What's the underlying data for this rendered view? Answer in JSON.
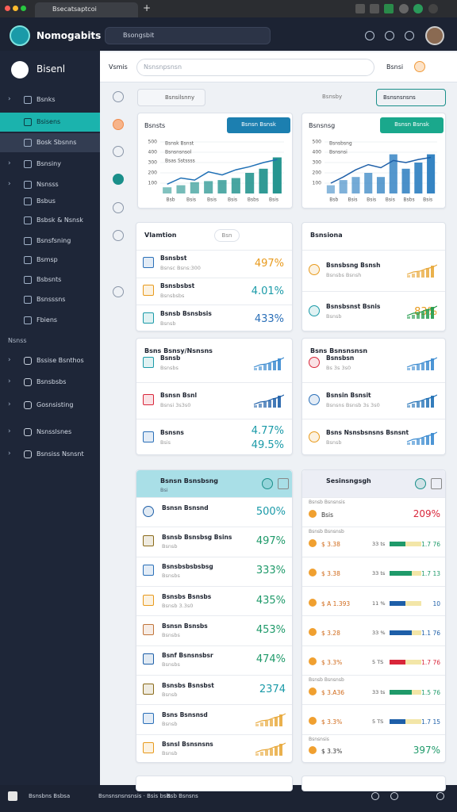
{
  "browser": {
    "tab": "Bsecatsaptcoi"
  },
  "header": {
    "logo": "Nomogabits",
    "search": "Bsongsbit"
  },
  "sidebar": {
    "user": "Bisenl",
    "active": 1,
    "items": [
      "Bsnks",
      "Bsisens",
      "Bosk Sbsnns",
      "Bsnsiny",
      "Nsnsss",
      "Bsbus",
      "Bsbsk & Nsnsk",
      "Bsnsfsning",
      "Bsmsp",
      "Bsbsnts",
      "Bsnsssns",
      "Fbiens"
    ],
    "section": "Nsnss",
    "items2": [
      "Bssise Bsnthos",
      "Bsnsbsbs",
      "Gosnsisting",
      "Nsnsslsnes",
      "Bsnsiss Nsnsnt"
    ]
  },
  "toolbar": {
    "label": "Vsmis",
    "search": "Nsnsnpsnsn",
    "action": "Bsnsi"
  },
  "filter": {
    "chip": "Bsnsilsnny",
    "label": "Bsnsby",
    "button": "Bsnsnsnsns"
  },
  "charts": [
    {
      "title": "Bsnsts",
      "button": "Bsnsn Bsnsk",
      "legend": [
        "Bsnsk Bsnst",
        "Bsnsnsnsol",
        "Bsas Sstssss"
      ],
      "ylim": [
        0,
        500
      ],
      "yticks": [
        100,
        200,
        300,
        400,
        500
      ],
      "xlabels": [
        "Bsb",
        "Bsis",
        "Bsis",
        "Bsis",
        "Bsbs",
        "Bsis"
      ],
      "bars": [
        60,
        80,
        110,
        120,
        130,
        150,
        200,
        240,
        350
      ],
      "line": [
        90,
        150,
        130,
        210,
        180,
        230,
        260,
        300,
        330
      ],
      "color": "#1a8f8a",
      "line_color": "#1e6fb5",
      "button_color": "#1c7fb0"
    },
    {
      "title": "Bsnsnsg",
      "button": "Bsnsn Bsnsk",
      "legend": [
        "Bsnsbsng",
        "Bsnsnsi"
      ],
      "ylim": [
        0,
        500
      ],
      "yticks": [
        100,
        200,
        300,
        400,
        500
      ],
      "xlabels": [
        "Bsb",
        "Bsis",
        "Bsis",
        "Bsis",
        "Bsbs",
        "Bsis"
      ],
      "bars": [
        80,
        130,
        160,
        200,
        160,
        380,
        240,
        300,
        380
      ],
      "line": [
        100,
        160,
        230,
        280,
        250,
        320,
        300,
        330,
        350
      ],
      "color": "#2a7dc0",
      "line_color": "#1e5fa8",
      "button_color": "#1aa88c"
    }
  ],
  "cards": [
    {
      "title": "Vlamtion",
      "chip": "Bsn",
      "rows": [
        {
          "title": "Bsnsbst",
          "sub": "Bsnsc Bsns:300",
          "value": "497%",
          "color": "#e89a1c"
        },
        {
          "title": "Bsnsbsbst",
          "sub": "Bsnsbsbs",
          "value": "4.01%",
          "color": "#1a9aa8"
        },
        {
          "title": "Bsnsb Bsnsbsis",
          "sub": "Bsnsb",
          "value": "433%",
          "color": "#2a6fb8"
        }
      ]
    },
    {
      "title": "Bsnsiona",
      "rows": [
        {
          "title": "Bsnsbsng Bsnsh",
          "sub": "Bsnsbs Bsnsh",
          "spark": "#e8a83a"
        },
        {
          "title": "Bsnsbsnst Bsnis",
          "sub": "Bsnsb",
          "value": "83%",
          "color": "#e89a1c",
          "spark": "#1f9a4a"
        }
      ]
    },
    {
      "title": "Bsns Bsnsy/Nsnsns",
      "rows": [
        {
          "title": "Bsnsb",
          "sub": "Bsnsbs",
          "spark": "#3a8ad0"
        },
        {
          "title": "Bsnsn Bsnl",
          "sub": "Bsnsi 3s3s0",
          "spark": "#1e5fa8"
        },
        {
          "title": "Bsnsns",
          "sub": "Bsis",
          "value": "4.77%",
          "value2": "49.5%",
          "color": "#1a9aa8"
        }
      ]
    },
    {
      "title": "Bsns Bsnsnsnsn",
      "rows": [
        {
          "title": "Bsnsbsn",
          "sub": "Bs 3s 3s0",
          "spark": "#3a8ad0"
        },
        {
          "title": "Bsnsin Bsnsit",
          "sub": "Bsnsns Bsnsb 3s 3s0",
          "spark": "#1e6fb5"
        },
        {
          "title": "Bsns Nsnsbsnsns Bsnsnt",
          "sub": "Bsnsb",
          "spark": "#3a8ad0"
        }
      ]
    }
  ],
  "lists": [
    {
      "title": "Bsnsn Bsnsbsng",
      "sub": "Bsi",
      "rows": [
        {
          "title": "Bsnsn Bsnsnd",
          "value": "500%",
          "color": "#1a9aa8"
        },
        {
          "title": "Bsnsb Bsnsbsg Bsins",
          "sub": "Bsnsb",
          "value": "497%",
          "color": "#1f9a6a"
        },
        {
          "title": "Bsnsbsbsbsbsg",
          "sub": "Bsnsbs",
          "value": "333%",
          "color": "#1f9a6a"
        },
        {
          "title": "Bsnsbs Bsnsbs",
          "sub": "Bsnsb 3.3s0",
          "value": "435%",
          "color": "#1f9a6a"
        },
        {
          "title": "Bsnsn Bsnsbs",
          "sub": "Bsnsbs",
          "value": "453%",
          "color": "#1f9a6a"
        },
        {
          "title": "Bsnf Bsnsnsbsr",
          "sub": "Bsnsbs",
          "value": "474%",
          "color": "#1f9a6a"
        },
        {
          "title": "Bsnsbs Bsnsbst",
          "sub": "Bsnsb",
          "value": "2374",
          "color": "#1a9aa8"
        },
        {
          "title": "Bsns Bsnsnsd",
          "sub": "Bsnsb",
          "spark": "#e8a83a"
        },
        {
          "title": "Bsnsl Bsnsnsns",
          "sub": "Bsnsb",
          "spark": "#e8a83a"
        }
      ]
    },
    {
      "title": "Sesinsngsgh",
      "rows": [
        {
          "sub": "Bsnsb Bsnsnsis",
          "label": "Bsis",
          "value": "209%",
          "color": "#d9263a"
        },
        {
          "sub": "Bsnsb Bsnsnsb",
          "label": "$ 3.38",
          "mid": "33 ts",
          "value": "1.7 76",
          "color": "#1f9a6a"
        },
        {
          "label": "$ 3.38",
          "mid": "33 ts",
          "value": "1.7 13",
          "color": "#1f9a6a"
        },
        {
          "label": "$ A 1.393",
          "mid": "11 %",
          "value": "10",
          "color": "#1e5fa8"
        },
        {
          "label": "$ 3.28",
          "mid": "33 %",
          "value": "1.1 76",
          "color": "#1e5fa8"
        },
        {
          "label": "$ 3.3%",
          "mid": "5 TS",
          "value": "1.7 76",
          "color": "#d9263a"
        },
        {
          "sub": "Bsnsb Bsnsnsb",
          "label": "$ 3.A36",
          "mid": "33 ts",
          "value": "1.5 76",
          "color": "#1f9a6a"
        },
        {
          "label": "$ 3.3%",
          "mid": "5 TS",
          "value": "1.7 15",
          "color": "#1e5fa8"
        },
        {
          "sub": "Bsnsnsis",
          "label": "$ 3.3%",
          "value": "397%",
          "color": "#1f9a6a"
        }
      ]
    }
  ],
  "bottom": [
    "Bsnsbns Bsbsa",
    "Bsnsnsnsnsnsis · Bsis bsis",
    "Bsb Bsnsns"
  ]
}
